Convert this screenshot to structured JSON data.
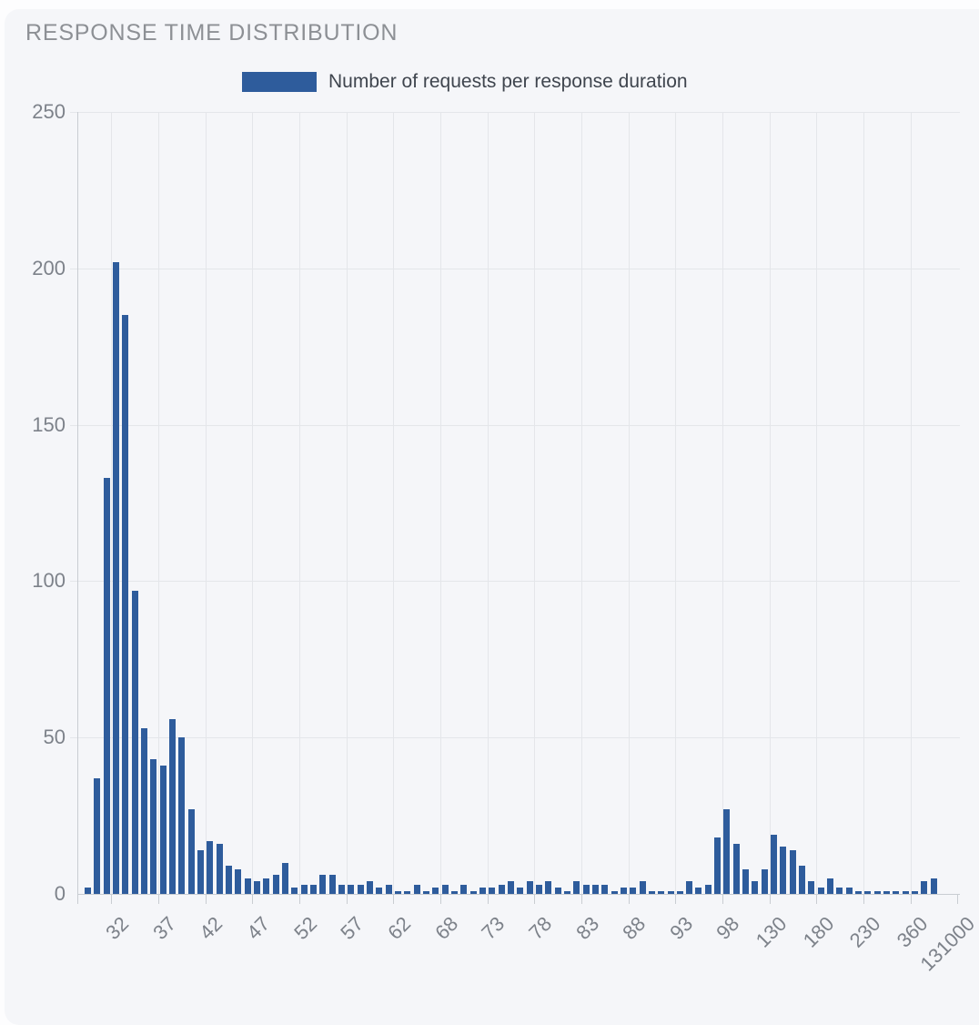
{
  "title": "RESPONSE TIME DISTRIBUTION",
  "legend": {
    "label": "Number of requests per response duration"
  },
  "colors": {
    "bar": "#2e5c9c",
    "panel_background": "#f5f6f9",
    "gridline": "#e4e6ea",
    "axis_line": "#c9cdd2",
    "title_text": "#8d9095",
    "legend_text": "#3f454e",
    "axis_tick_text": "#7d828a"
  },
  "chart_data": {
    "type": "bar",
    "title": "Number of requests per response duration",
    "legend_position": "top",
    "grid": true,
    "y_axis": {
      "ticks": [
        0,
        50,
        100,
        150,
        200,
        250
      ],
      "range": [
        0,
        250
      ]
    },
    "x_axis": {
      "tick_labels": [
        "32",
        "37",
        "42",
        "47",
        "52",
        "57",
        "62",
        "68",
        "73",
        "78",
        "83",
        "88",
        "93",
        "98",
        "130",
        "180",
        "230",
        "360",
        "131000"
      ],
      "bars_per_tick": 5,
      "bars_before_first_tick": 3,
      "total_slots": 93
    },
    "values": [
      2,
      37,
      133,
      202,
      185,
      97,
      53,
      43,
      41,
      56,
      50,
      27,
      14,
      17,
      16,
      9,
      8,
      5,
      4,
      5,
      6,
      10,
      2,
      3,
      3,
      6,
      6,
      3,
      3,
      3,
      4,
      2,
      3,
      1,
      1,
      3,
      1,
      2,
      3,
      1,
      3,
      1,
      2,
      2,
      3,
      4,
      2,
      4,
      3,
      4,
      2,
      1,
      4,
      3,
      3,
      3,
      1,
      2,
      2,
      4,
      1,
      1,
      1,
      1,
      4,
      2,
      3,
      18,
      27,
      16,
      8,
      4,
      8,
      19,
      15,
      14,
      9,
      4,
      2,
      5,
      2,
      2,
      1,
      1,
      1,
      1,
      1,
      1,
      1,
      4,
      5,
      0,
      0
    ]
  }
}
